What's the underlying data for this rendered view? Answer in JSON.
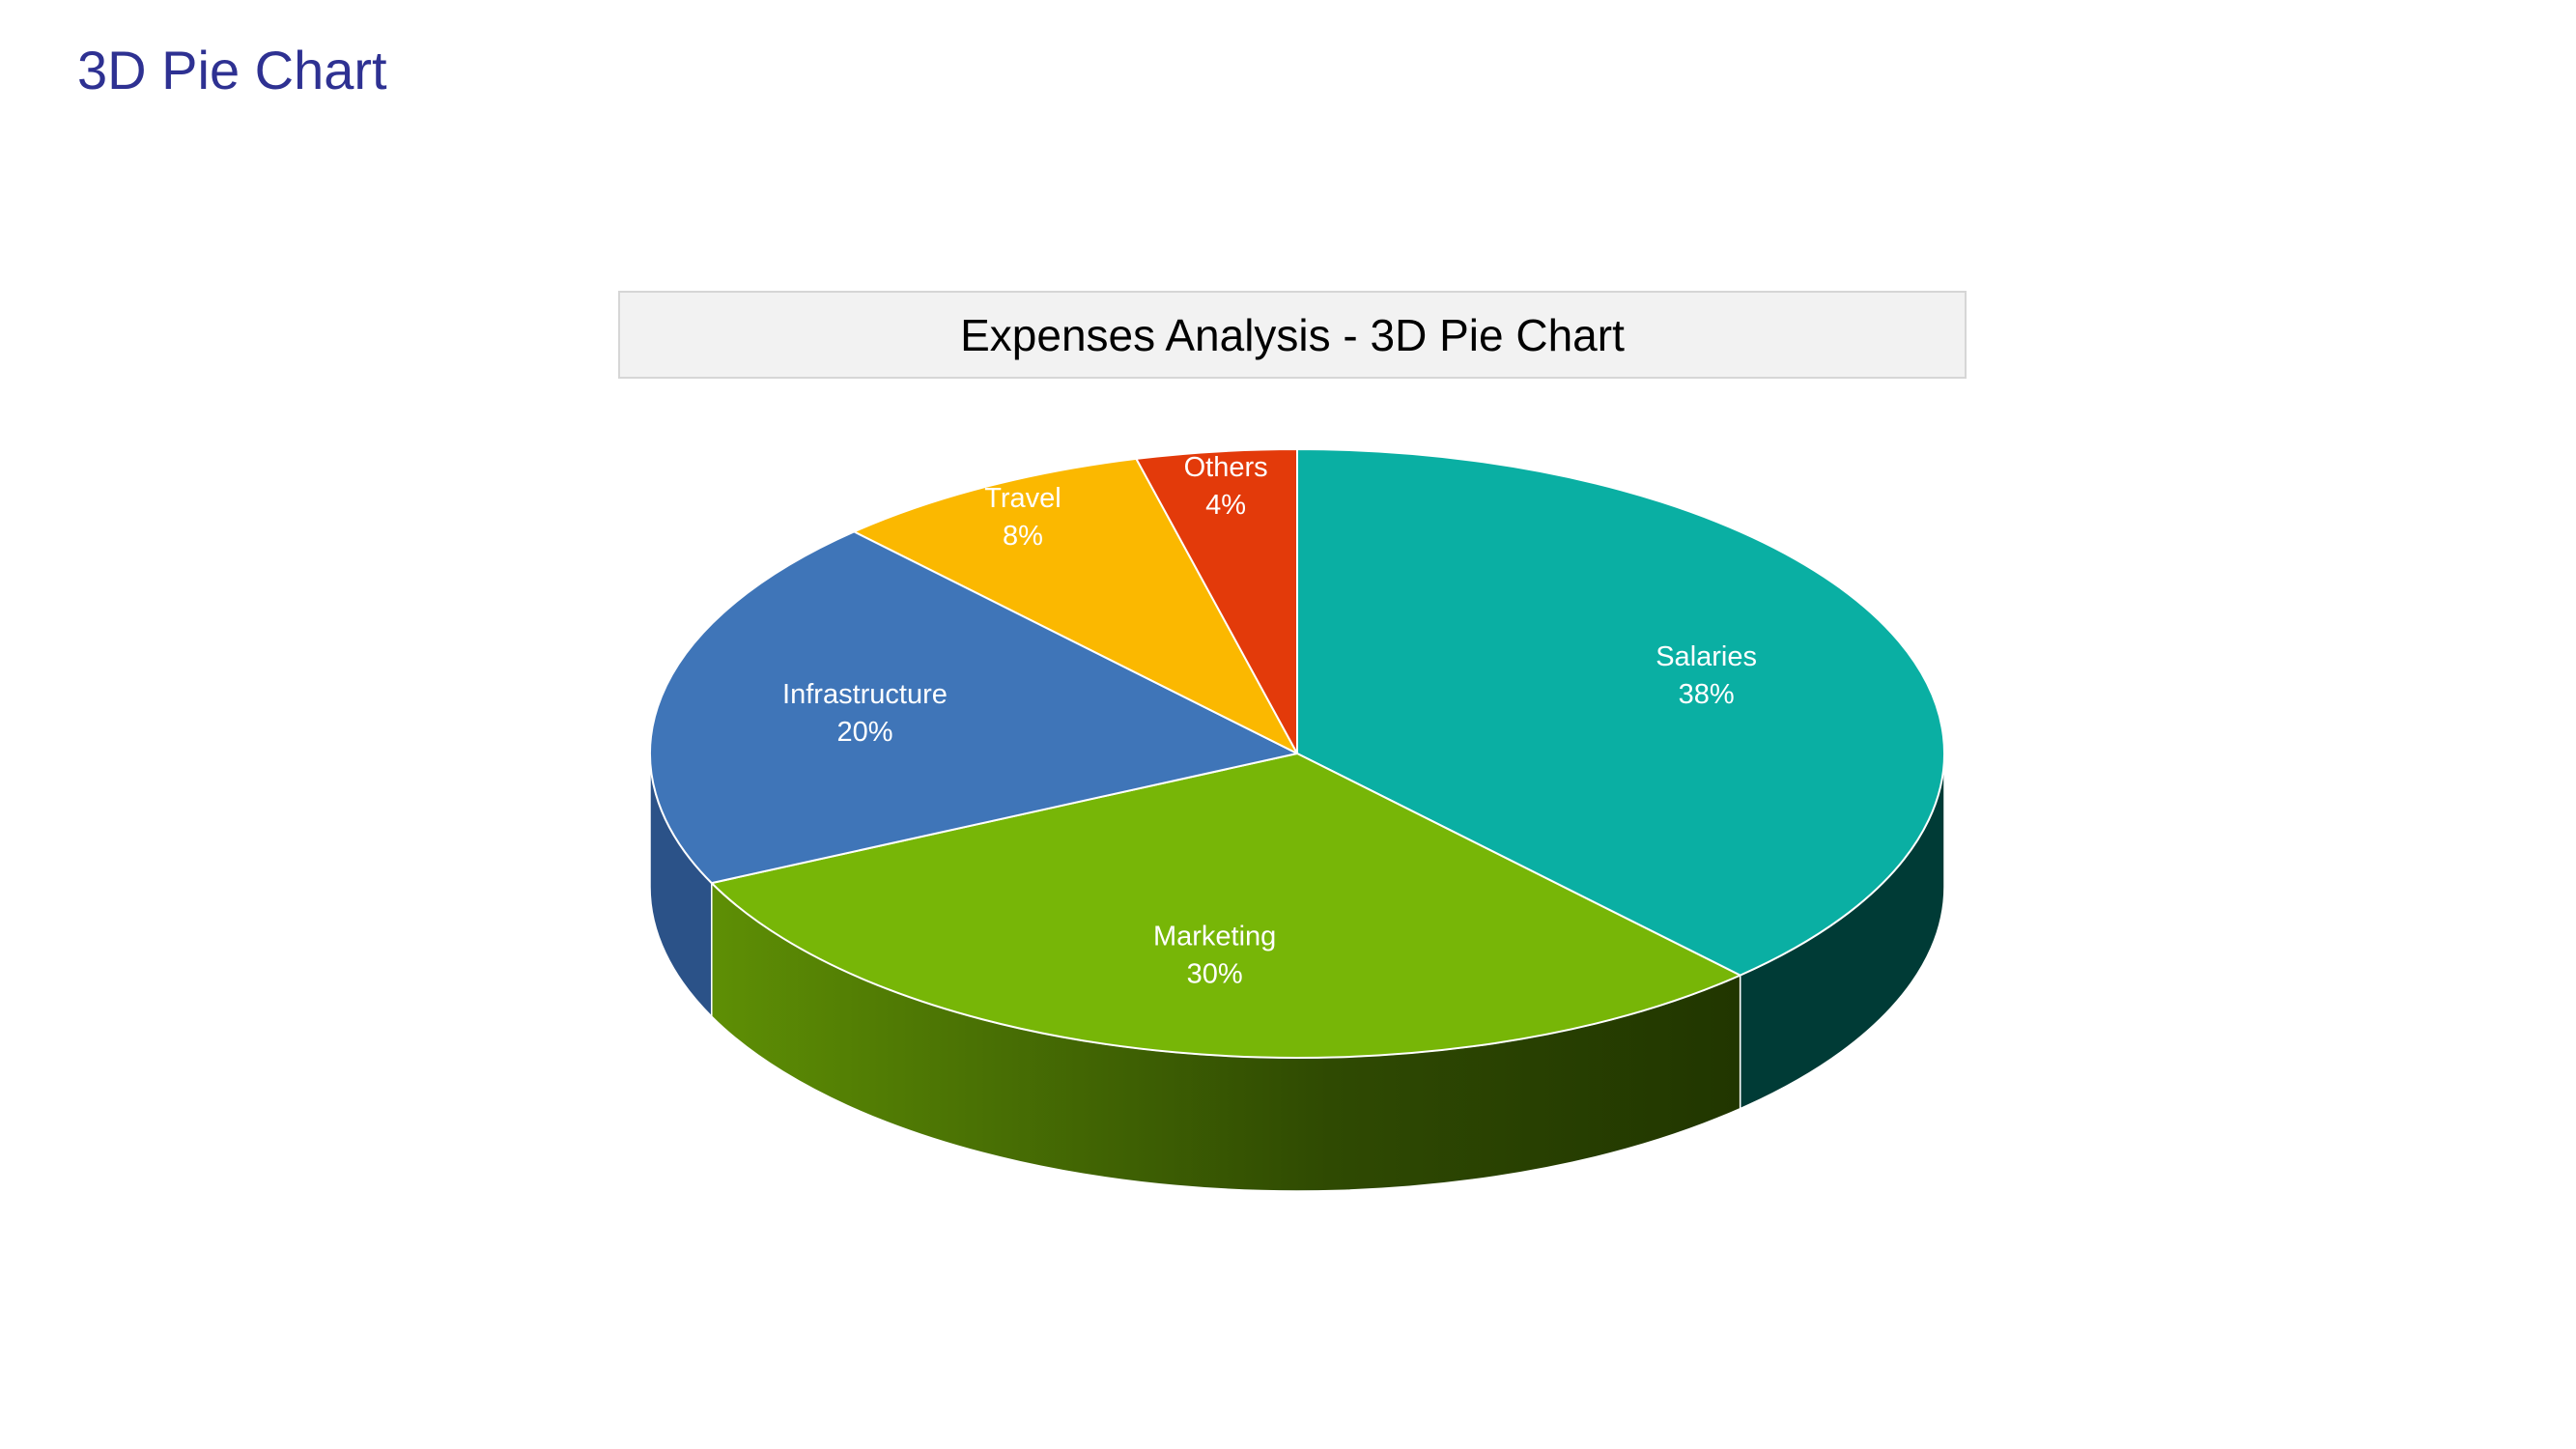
{
  "page": {
    "title": "3D Pie Chart"
  },
  "chart_data": {
    "type": "pie",
    "title": "Expenses Analysis - 3D Pie Chart",
    "style": "3d",
    "slices": [
      {
        "label": "Salaries",
        "value": 38,
        "display": "38%",
        "color": "#0aafa3",
        "side_color": "#003b36"
      },
      {
        "label": "Marketing",
        "value": 30,
        "display": "30%",
        "color": "#77b607",
        "side_color": "#4f7d04"
      },
      {
        "label": "Infrastructure",
        "value": 20,
        "display": "20%",
        "color": "#3f75b8",
        "side_color": "#2b5288"
      },
      {
        "label": "Travel",
        "value": 8,
        "display": "8%",
        "color": "#fbb800",
        "side_color": "#b08000"
      },
      {
        "label": "Others",
        "value": 4,
        "display": "4%",
        "color": "#e33a0a",
        "side_color": "#9e2807"
      }
    ],
    "legend": "none",
    "data_labels": "inside"
  }
}
